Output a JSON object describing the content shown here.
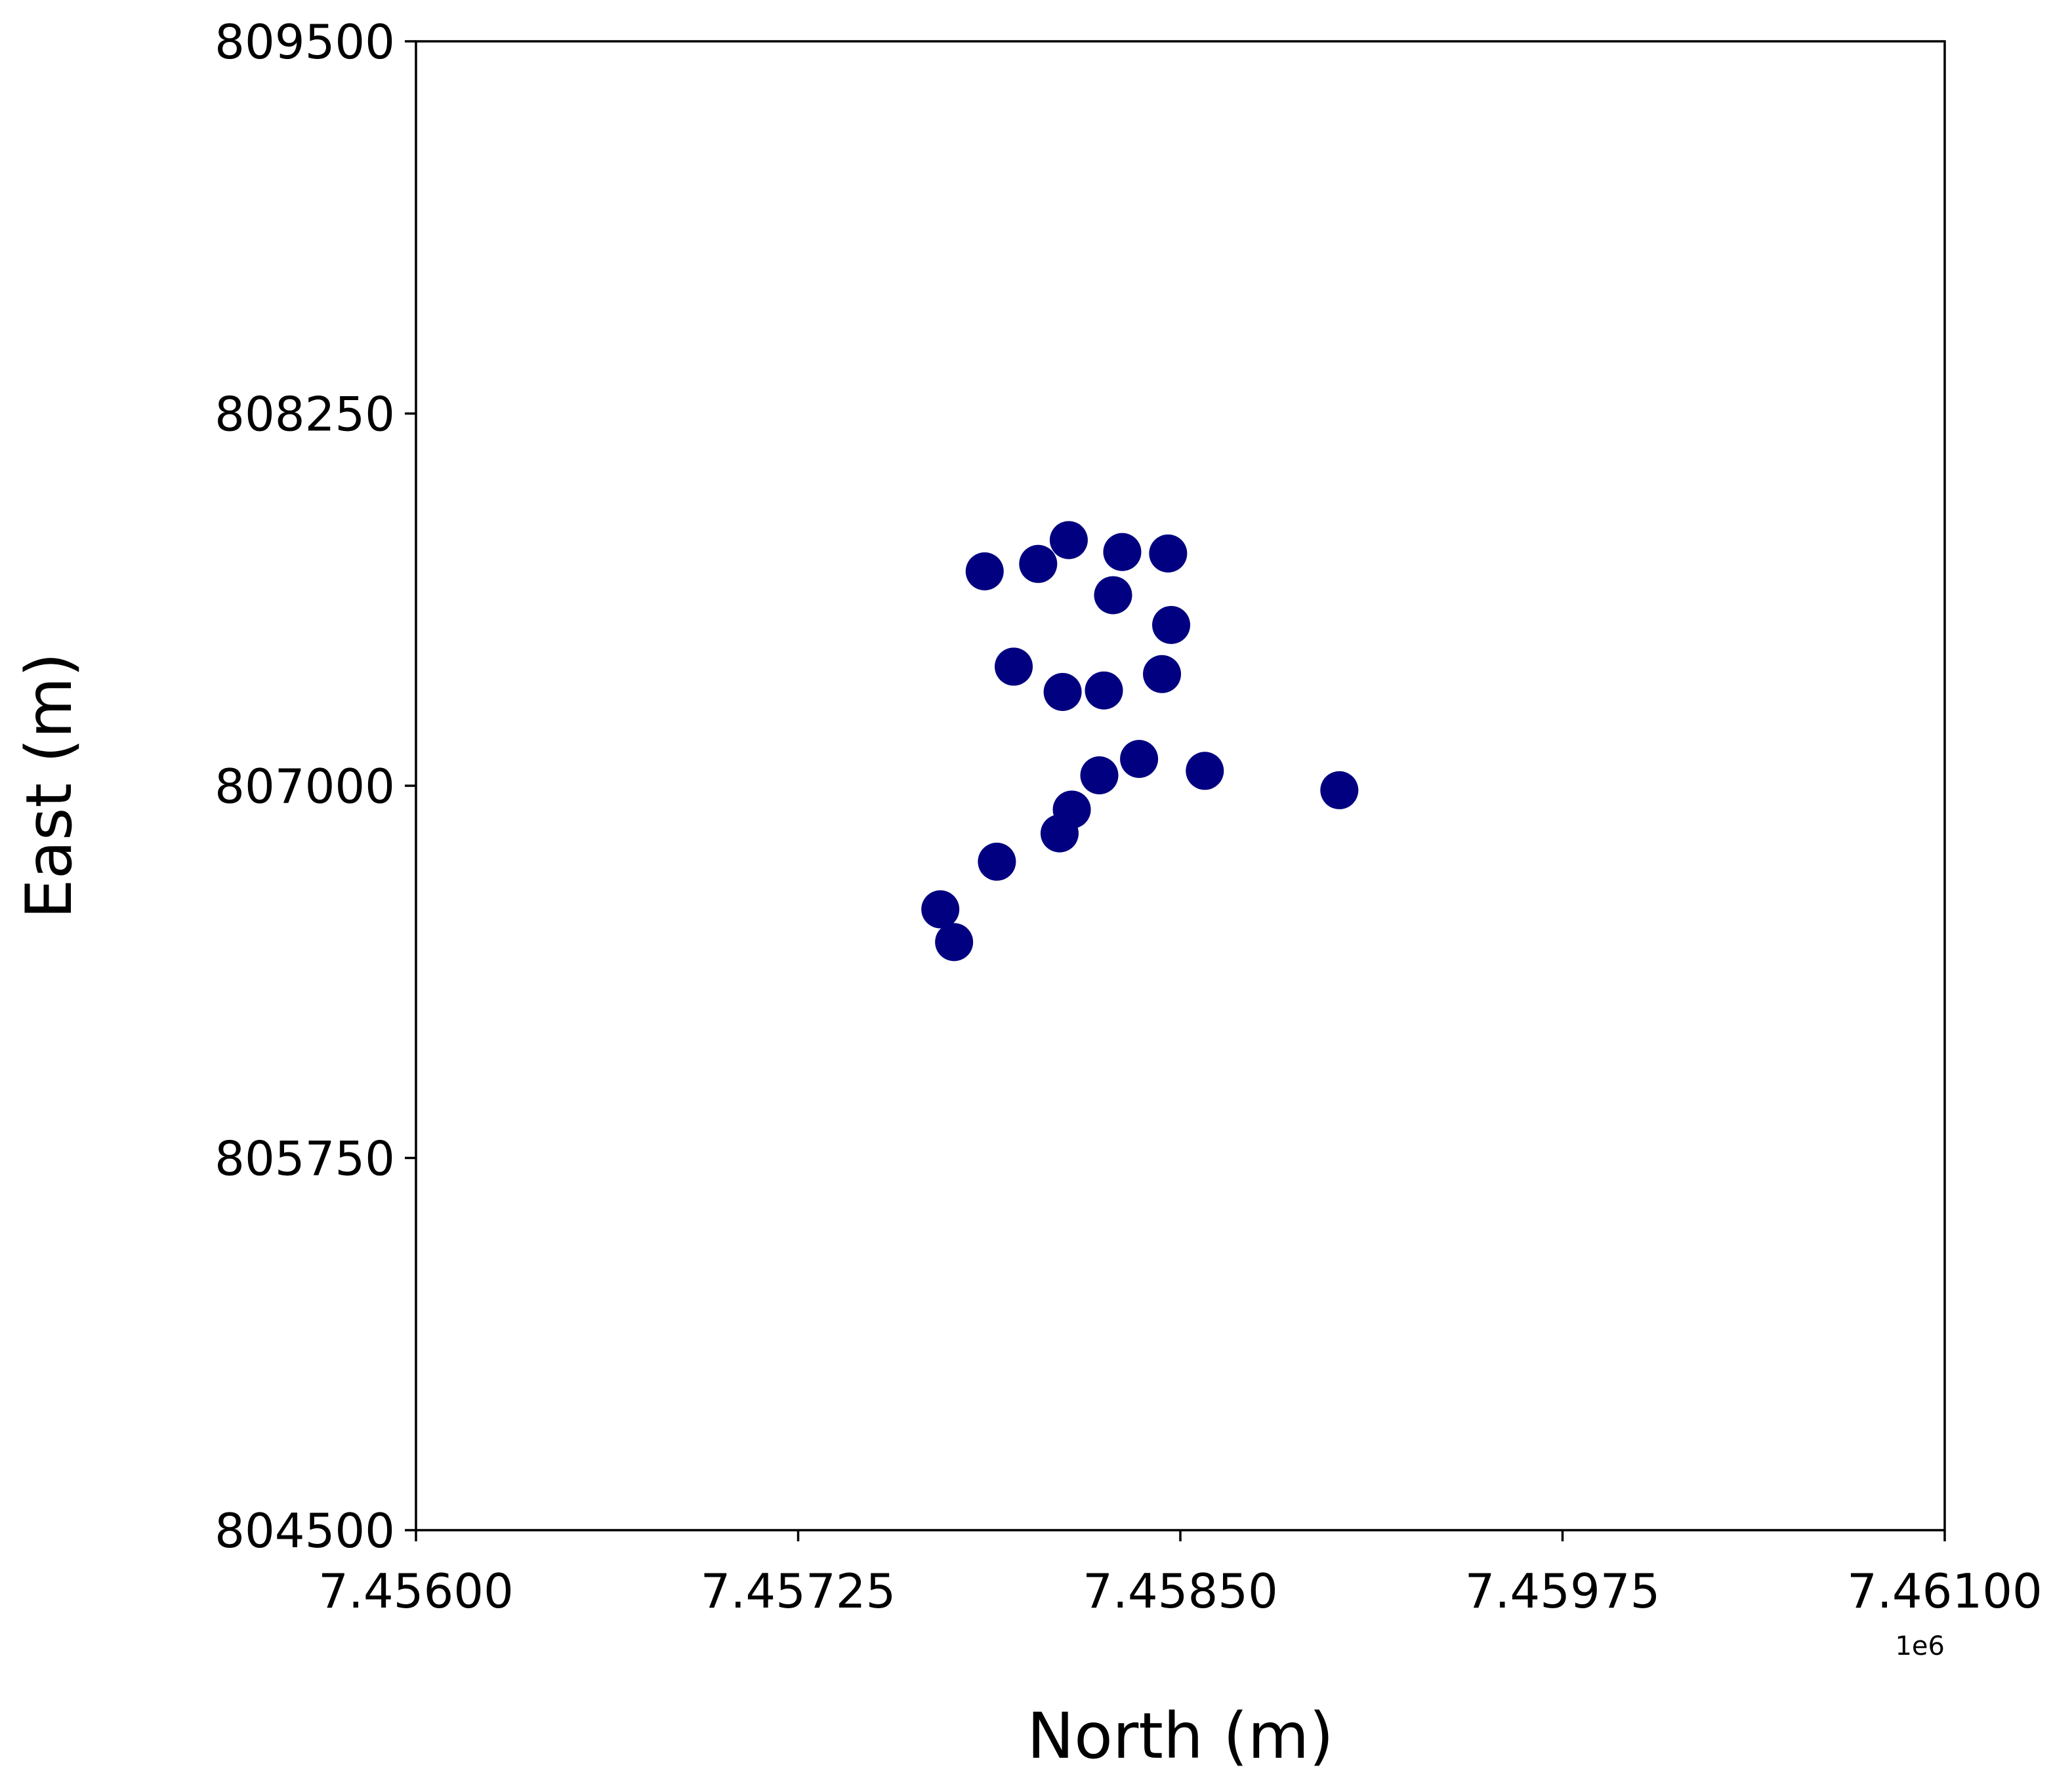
{
  "chart_data": {
    "type": "scatter",
    "xlabel": "North (m)",
    "ylabel": "East (m)",
    "x_offset_label": "1e6",
    "xlim": [
      7456000,
      7461000
    ],
    "ylim": [
      804500,
      809500
    ],
    "x_ticks": [
      7456000,
      7457250,
      7458500,
      7459750,
      7461000
    ],
    "x_tick_labels": [
      "7.45600",
      "7.45725",
      "7.45850",
      "7.45975",
      "7.46100"
    ],
    "y_ticks": [
      804500,
      805750,
      807000,
      808250,
      809500
    ],
    "y_tick_labels": [
      "804500",
      "805750",
      "807000",
      "808250",
      "809500"
    ],
    "grid": false,
    "marker_color": "#000080",
    "points": [
      {
        "x": 7457860,
        "y": 807720
      },
      {
        "x": 7458035,
        "y": 807745
      },
      {
        "x": 7458135,
        "y": 807825
      },
      {
        "x": 7458310,
        "y": 807785
      },
      {
        "x": 7458460,
        "y": 807780
      },
      {
        "x": 7458280,
        "y": 807640
      },
      {
        "x": 7458470,
        "y": 807540
      },
      {
        "x": 7457955,
        "y": 807400
      },
      {
        "x": 7458115,
        "y": 807315
      },
      {
        "x": 7458250,
        "y": 807320
      },
      {
        "x": 7458440,
        "y": 807375
      },
      {
        "x": 7458365,
        "y": 807090
      },
      {
        "x": 7458580,
        "y": 807050
      },
      {
        "x": 7458235,
        "y": 807035
      },
      {
        "x": 7459020,
        "y": 806985
      },
      {
        "x": 7458145,
        "y": 806920
      },
      {
        "x": 7458105,
        "y": 806840
      },
      {
        "x": 7457900,
        "y": 806745
      },
      {
        "x": 7457715,
        "y": 806585
      },
      {
        "x": 7457760,
        "y": 806475
      }
    ]
  }
}
